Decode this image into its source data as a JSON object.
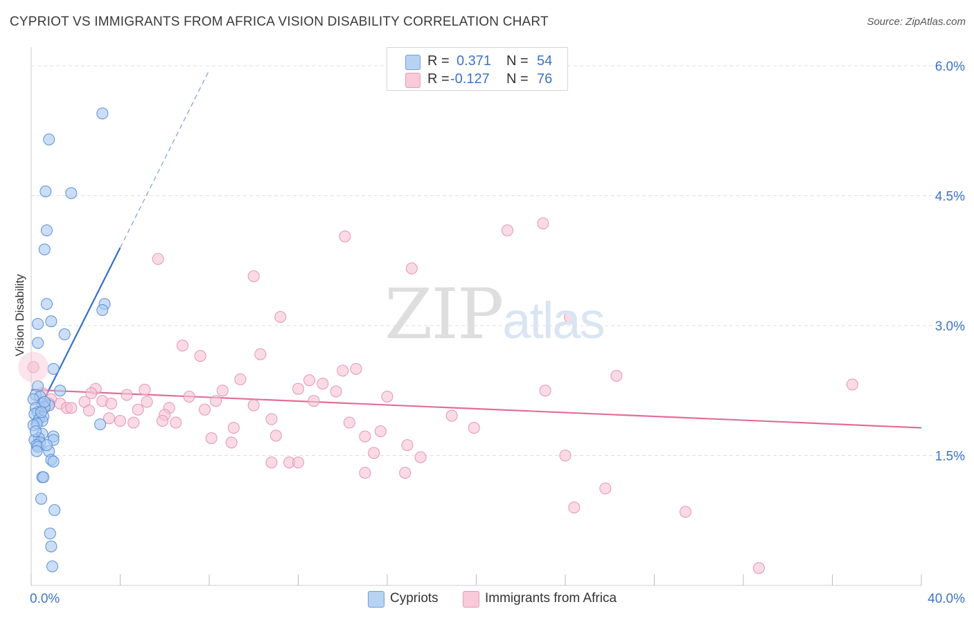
{
  "header": {
    "title": "CYPRIOT VS IMMIGRANTS FROM AFRICA VISION DISABILITY CORRELATION CHART",
    "source": "Source: ZipAtlas.com"
  },
  "watermark": {
    "part1": "ZIP",
    "part2": "atlas"
  },
  "legend": {
    "rows": [
      {
        "r_label": "R =",
        "r_value": "0.371",
        "n_label": "N =",
        "n_value": "54"
      },
      {
        "r_label": "R =",
        "r_value": "-0.127",
        "n_label": "N =",
        "n_value": "76"
      }
    ]
  },
  "bottom_legend": {
    "series1": "Cypriots",
    "series2": "Immigrants from Africa"
  },
  "colors": {
    "blue_fill": "#a9c8f0",
    "blue_stroke": "#5a8fd6",
    "blue_line": "#2f6fd0",
    "pink_fill": "#f6c3d3",
    "pink_stroke": "#e594b0",
    "pink_line": "#e36d97",
    "axis_text": "#3b74c9",
    "grid": "#dddddd"
  },
  "chart_data": {
    "type": "scatter",
    "title": "CYPRIOT VS IMMIGRANTS FROM AFRICA VISION DISABILITY CORRELATION CHART",
    "xlabel": "",
    "ylabel": "Vision Disability",
    "xlim": [
      0,
      40
    ],
    "ylim": [
      0,
      6.2
    ],
    "x_tick_labels": [
      "0.0%",
      "40.0%"
    ],
    "y_ticks": [
      1.5,
      3.0,
      4.5,
      6.0
    ],
    "y_tick_labels": [
      "1.5%",
      "3.0%",
      "4.5%",
      "6.0%"
    ],
    "grid": "horizontal dashed",
    "series": [
      {
        "name": "Cypriots",
        "r": 0.371,
        "n": 54,
        "trend": {
          "x0": 0.0,
          "y0": 1.85,
          "x1": 4.0,
          "y1": 3.9,
          "dashed_to": {
            "x": 8.0,
            "y": 5.95
          }
        },
        "points": [
          [
            3.2,
            5.45
          ],
          [
            0.8,
            5.15
          ],
          [
            0.65,
            4.55
          ],
          [
            1.8,
            4.53
          ],
          [
            0.7,
            4.1
          ],
          [
            0.6,
            3.88
          ],
          [
            0.7,
            3.25
          ],
          [
            3.3,
            3.25
          ],
          [
            3.2,
            3.18
          ],
          [
            0.9,
            3.05
          ],
          [
            0.3,
            3.02
          ],
          [
            1.5,
            2.9
          ],
          [
            0.3,
            2.8
          ],
          [
            1.0,
            2.5
          ],
          [
            0.3,
            2.3
          ],
          [
            1.3,
            2.25
          ],
          [
            0.2,
            2.2
          ],
          [
            0.4,
            2.18
          ],
          [
            0.1,
            2.15
          ],
          [
            0.5,
            2.1
          ],
          [
            0.8,
            2.08
          ],
          [
            0.6,
            2.06
          ],
          [
            0.2,
            2.05
          ],
          [
            0.3,
            2.0
          ],
          [
            0.15,
            1.98
          ],
          [
            0.55,
            1.95
          ],
          [
            0.35,
            1.92
          ],
          [
            0.5,
            1.9
          ],
          [
            0.25,
            1.87
          ],
          [
            0.1,
            1.85
          ],
          [
            3.1,
            1.86
          ],
          [
            0.5,
            1.75
          ],
          [
            1.0,
            1.72
          ],
          [
            0.35,
            1.7
          ],
          [
            0.15,
            1.68
          ],
          [
            1.0,
            1.68
          ],
          [
            0.4,
            1.65
          ],
          [
            0.25,
            1.62
          ],
          [
            0.3,
            1.6
          ],
          [
            0.8,
            1.55
          ],
          [
            0.25,
            1.55
          ],
          [
            0.9,
            1.45
          ],
          [
            1.0,
            1.43
          ],
          [
            0.5,
            1.25
          ],
          [
            0.55,
            1.25
          ],
          [
            0.45,
            1.0
          ],
          [
            1.05,
            0.87
          ],
          [
            0.85,
            0.6
          ],
          [
            0.9,
            0.45
          ],
          [
            0.95,
            0.22
          ],
          [
            0.2,
            1.78
          ],
          [
            0.6,
            2.12
          ],
          [
            0.45,
            2.0
          ],
          [
            0.7,
            1.62
          ]
        ]
      },
      {
        "name": "Immigrants from Africa",
        "r": -0.127,
        "n": 76,
        "trend": {
          "x0": 0.0,
          "y0": 2.26,
          "x1": 40.0,
          "y1": 1.82
        },
        "points": [
          [
            23.0,
            4.18
          ],
          [
            21.4,
            4.1
          ],
          [
            14.1,
            4.03
          ],
          [
            5.7,
            3.77
          ],
          [
            10.0,
            3.57
          ],
          [
            17.1,
            3.66
          ],
          [
            11.2,
            3.1
          ],
          [
            24.2,
            3.1
          ],
          [
            6.8,
            2.77
          ],
          [
            10.3,
            2.67
          ],
          [
            7.6,
            2.65
          ],
          [
            0.1,
            2.52
          ],
          [
            14.6,
            2.5
          ],
          [
            14.0,
            2.48
          ],
          [
            26.3,
            2.42
          ],
          [
            9.4,
            2.38
          ],
          [
            12.5,
            2.37
          ],
          [
            36.9,
            2.32
          ],
          [
            13.1,
            2.33
          ],
          [
            12.0,
            2.27
          ],
          [
            2.9,
            2.27
          ],
          [
            5.1,
            2.26
          ],
          [
            8.6,
            2.25
          ],
          [
            0.5,
            2.22
          ],
          [
            13.7,
            2.24
          ],
          [
            23.1,
            2.25
          ],
          [
            16.0,
            2.18
          ],
          [
            4.3,
            2.2
          ],
          [
            7.1,
            2.18
          ],
          [
            2.7,
            2.22
          ],
          [
            5.2,
            2.12
          ],
          [
            8.3,
            2.13
          ],
          [
            0.9,
            2.15
          ],
          [
            12.7,
            2.13
          ],
          [
            3.2,
            2.13
          ],
          [
            2.4,
            2.12
          ],
          [
            1.3,
            2.1
          ],
          [
            3.6,
            2.1
          ],
          [
            10.0,
            2.08
          ],
          [
            6.2,
            2.05
          ],
          [
            1.6,
            2.05
          ],
          [
            0.6,
            2.05
          ],
          [
            2.6,
            2.02
          ],
          [
            7.8,
            2.03
          ],
          [
            4.8,
            2.03
          ],
          [
            6.0,
            1.97
          ],
          [
            18.9,
            1.96
          ],
          [
            10.8,
            1.92
          ],
          [
            3.5,
            1.93
          ],
          [
            4.0,
            1.9
          ],
          [
            5.9,
            1.9
          ],
          [
            14.3,
            1.88
          ],
          [
            4.6,
            1.88
          ],
          [
            6.5,
            1.88
          ],
          [
            9.1,
            1.82
          ],
          [
            19.9,
            1.82
          ],
          [
            15.7,
            1.78
          ],
          [
            11.0,
            1.73
          ],
          [
            15.0,
            1.72
          ],
          [
            8.1,
            1.7
          ],
          [
            16.9,
            1.62
          ],
          [
            9.0,
            1.65
          ],
          [
            15.4,
            1.53
          ],
          [
            24.0,
            1.5
          ],
          [
            17.5,
            1.48
          ],
          [
            11.6,
            1.42
          ],
          [
            10.8,
            1.42
          ],
          [
            12.0,
            1.42
          ],
          [
            15.0,
            1.3
          ],
          [
            16.8,
            1.3
          ],
          [
            25.8,
            1.12
          ],
          [
            24.4,
            0.9
          ],
          [
            29.4,
            0.85
          ],
          [
            32.7,
            0.2
          ],
          [
            1.8,
            2.05
          ],
          [
            0.8,
            2.1
          ]
        ]
      }
    ]
  }
}
